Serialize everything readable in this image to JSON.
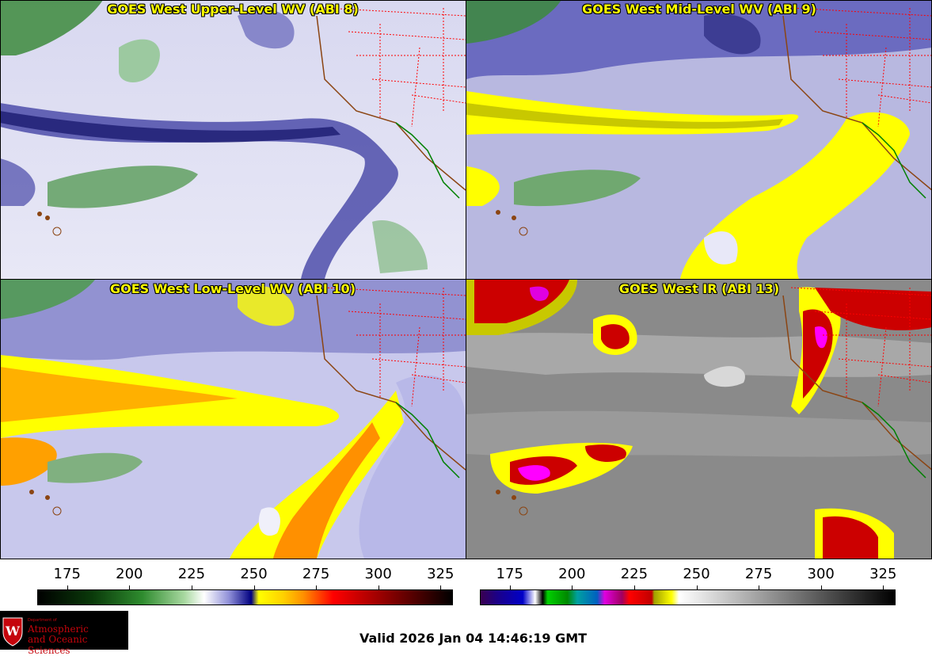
{
  "panels": [
    {
      "id": "p1",
      "title": "GOES West Upper-Level WV (ABI 8)",
      "palette": "wv-upper"
    },
    {
      "id": "p2",
      "title": "GOES West Mid-Level WV (ABI 9)",
      "palette": "wv-mid"
    },
    {
      "id": "p3",
      "title": "GOES West Low-Level WV (ABI 10)",
      "palette": "wv-low"
    },
    {
      "id": "p4",
      "title": "GOES West IR (ABI 13)",
      "palette": "ir"
    }
  ],
  "colorbars": {
    "wv": {
      "ticks": [
        "175",
        "200",
        "225",
        "250",
        "275",
        "300",
        "325"
      ],
      "tick_values": [
        175,
        200,
        225,
        250,
        275,
        300,
        325
      ],
      "range": [
        163,
        330
      ],
      "stops": [
        {
          "v": 163,
          "c": "#000000"
        },
        {
          "v": 185,
          "c": "#0a3a0a"
        },
        {
          "v": 205,
          "c": "#2e8b2e"
        },
        {
          "v": 222,
          "c": "#a8d8a0"
        },
        {
          "v": 230,
          "c": "#ffffff"
        },
        {
          "v": 240,
          "c": "#9090d8"
        },
        {
          "v": 249,
          "c": "#000080"
        },
        {
          "v": 252,
          "c": "#ffff00"
        },
        {
          "v": 262,
          "c": "#ffd000"
        },
        {
          "v": 270,
          "c": "#ff9000"
        },
        {
          "v": 282,
          "c": "#ff0000"
        },
        {
          "v": 300,
          "c": "#a00000"
        },
        {
          "v": 330,
          "c": "#000000"
        }
      ]
    },
    "ir": {
      "ticks": [
        "175",
        "200",
        "225",
        "250",
        "275",
        "300",
        "325"
      ],
      "tick_values": [
        175,
        200,
        225,
        250,
        275,
        300,
        325
      ],
      "range": [
        163,
        330
      ],
      "stops": [
        {
          "v": 163,
          "c": "#3a0050"
        },
        {
          "v": 170,
          "c": "#1a008a"
        },
        {
          "v": 180,
          "c": "#0000c8"
        },
        {
          "v": 185,
          "c": "#ffffff"
        },
        {
          "v": 188,
          "c": "#000000"
        },
        {
          "v": 190,
          "c": "#00d000"
        },
        {
          "v": 198,
          "c": "#008800"
        },
        {
          "v": 202,
          "c": "#00a0a0"
        },
        {
          "v": 210,
          "c": "#0060c0"
        },
        {
          "v": 213,
          "c": "#e000e0"
        },
        {
          "v": 220,
          "c": "#a00060"
        },
        {
          "v": 223,
          "c": "#ff0000"
        },
        {
          "v": 232,
          "c": "#c00000"
        },
        {
          "v": 233,
          "c": "#a0a000"
        },
        {
          "v": 240,
          "c": "#ffff00"
        },
        {
          "v": 243,
          "c": "#ffffff"
        },
        {
          "v": 330,
          "c": "#000000"
        }
      ]
    }
  },
  "footer": {
    "valid_text": "Valid 2026 Jan 04 14:46:19 GMT"
  },
  "logo": {
    "dept_line": "Department of",
    "name_line1": "Atmospheric",
    "name_line2": "and Oceanic Sciences",
    "brand_color": "#c5050c"
  },
  "colors": {
    "title_text": "#ffff00",
    "state_borders": "#ff0000",
    "coastline": "#8b4513",
    "mexico_coast": "#008000"
  }
}
